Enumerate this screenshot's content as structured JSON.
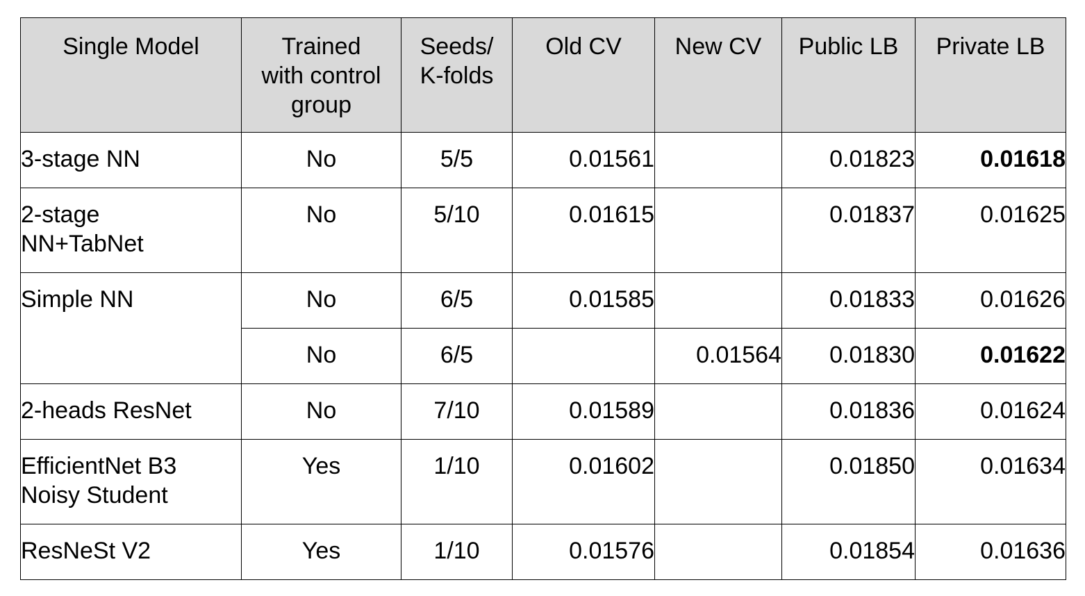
{
  "table": {
    "headers": [
      "Single Model",
      "Trained\nwith control\ngroup",
      "Seeds/\nK-folds",
      "Old CV",
      "New CV",
      "Public LB",
      "Private LB"
    ],
    "rows": [
      {
        "model": "3-stage NN",
        "control": "No",
        "seeds": "5/5",
        "old_cv": "0.01561",
        "new_cv": "",
        "public_lb": "0.01823",
        "private_lb": "0.01618",
        "private_bold": true
      },
      {
        "model": "2-stage\nNN+TabNet",
        "control": "No",
        "seeds": "5/10",
        "old_cv": "0.01615",
        "new_cv": "",
        "public_lb": "0.01837",
        "private_lb": "0.01625",
        "private_bold": false
      },
      {
        "model": "Simple NN",
        "control": "No",
        "seeds": "6/5",
        "old_cv": "0.01585",
        "new_cv": "",
        "public_lb": "0.01833",
        "private_lb": "0.01626",
        "private_bold": false
      },
      {
        "model": "",
        "control": "No",
        "seeds": "6/5",
        "old_cv": "",
        "new_cv": "0.01564",
        "public_lb": "0.01830",
        "private_lb": "0.01622",
        "private_bold": true
      },
      {
        "model": "2-heads ResNet",
        "control": "No",
        "seeds": "7/10",
        "old_cv": "0.01589",
        "new_cv": "",
        "public_lb": "0.01836",
        "private_lb": "0.01624",
        "private_bold": false
      },
      {
        "model": "EfficientNet B3\nNoisy Student",
        "control": "Yes",
        "seeds": "1/10",
        "old_cv": "0.01602",
        "new_cv": "",
        "public_lb": "0.01850",
        "private_lb": "0.01634",
        "private_bold": false
      },
      {
        "model": "ResNeSt V2",
        "control": "Yes",
        "seeds": "1/10",
        "old_cv": "0.01576",
        "new_cv": "",
        "public_lb": "0.01854",
        "private_lb": "0.01636",
        "private_bold": false
      }
    ]
  }
}
